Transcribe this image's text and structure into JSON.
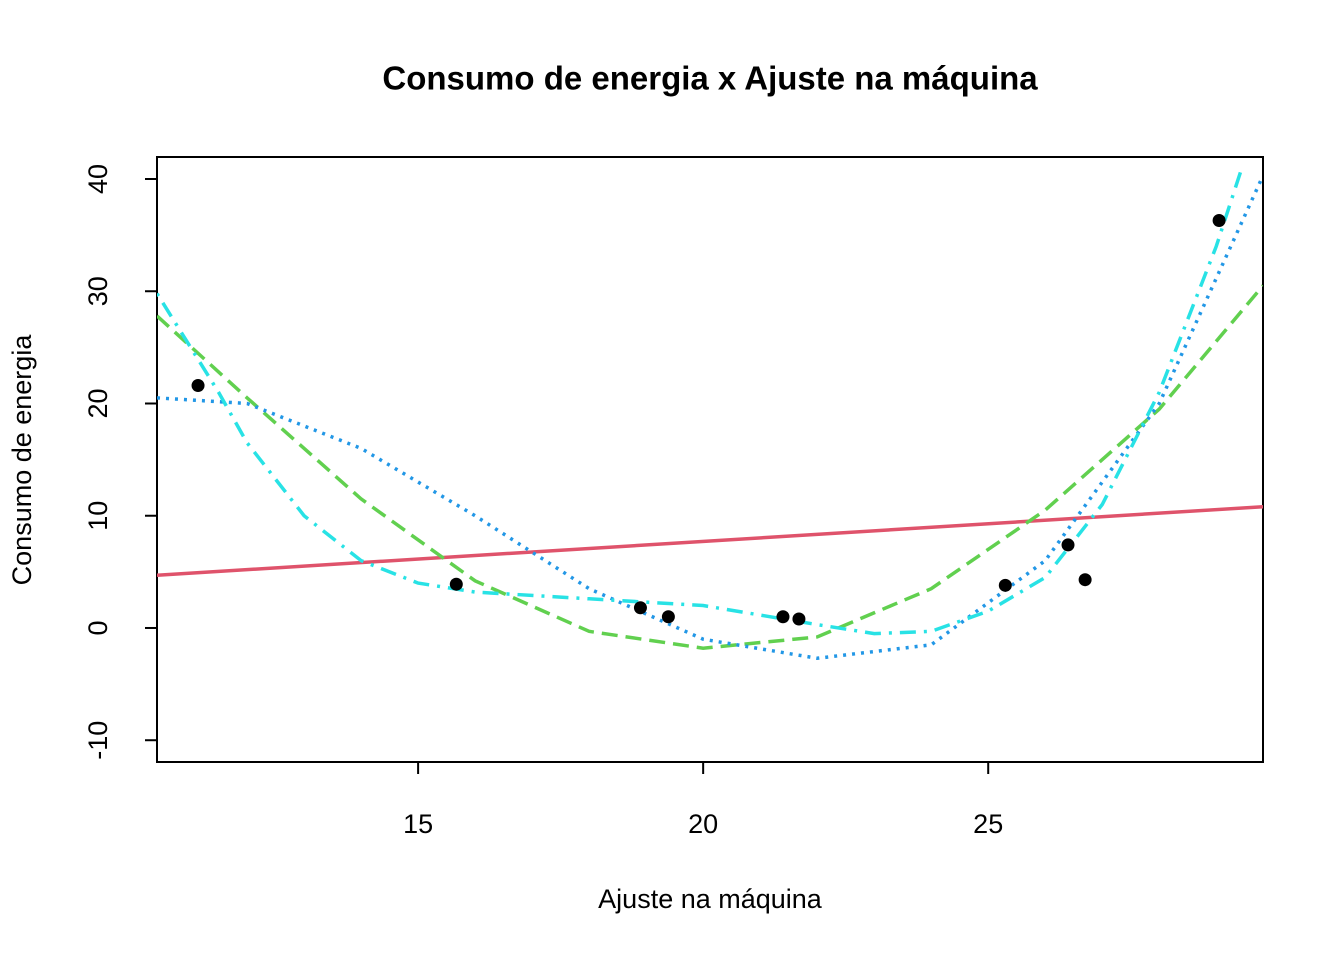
{
  "chart_data": {
    "type": "scatter",
    "title": "Consumo de energia x Ajuste na máquina",
    "x_label": "Ajuste na máquina",
    "y_label": "Consumo de energia",
    "x": [
      11.14,
      15.67,
      18.9,
      19.39,
      21.4,
      21.68,
      25.3,
      26.4,
      26.7,
      29.05
    ],
    "values": [
      21.6,
      3.9,
      1.8,
      1.0,
      1.0,
      0.8,
      3.8,
      7.4,
      4.3,
      36.3
    ],
    "color": "#000000",
    "xlim": [
      10.42,
      29.82
    ],
    "ylim": [
      -11.94,
      41.96
    ],
    "xticks": [
      15,
      20,
      25
    ],
    "yticks": [
      -10,
      0,
      10,
      20,
      30,
      40
    ],
    "lines": [
      {
        "color": "#DF536B",
        "dash": "solid",
        "x": [
          10.42,
          29.82
        ],
        "values": [
          4.7,
          10.8
        ]
      },
      {
        "color": "#61D04F",
        "dash": "dashed",
        "x": [
          10.42,
          12,
          14,
          16,
          18,
          20,
          22,
          24,
          26,
          28,
          29.82
        ],
        "values": [
          27.8,
          20.5,
          11.5,
          4.2,
          -0.3,
          -1.8,
          -0.8,
          3.5,
          10.5,
          19.5,
          30.5
        ]
      },
      {
        "color": "#2297E6",
        "dash": "dotted",
        "x": [
          10.42,
          12,
          14,
          16,
          18,
          20,
          22,
          24,
          26,
          28,
          29.82
        ],
        "values": [
          20.5,
          20,
          16,
          10,
          3.5,
          -1,
          -2.7,
          -1.5,
          6,
          20,
          40.3
        ]
      },
      {
        "color": "#28E2E5",
        "dash": "dotdash",
        "x": [
          10.42,
          11.5,
          12,
          13,
          14,
          15,
          16,
          18,
          20,
          22,
          23,
          24,
          25,
          26,
          27,
          28,
          29,
          29.45
        ],
        "values": [
          29.8,
          21,
          16.5,
          10,
          6,
          4,
          3.2,
          2.6,
          2.0,
          0.3,
          -0.5,
          -0.3,
          1.5,
          4.5,
          11,
          21,
          34,
          41
        ]
      }
    ]
  }
}
